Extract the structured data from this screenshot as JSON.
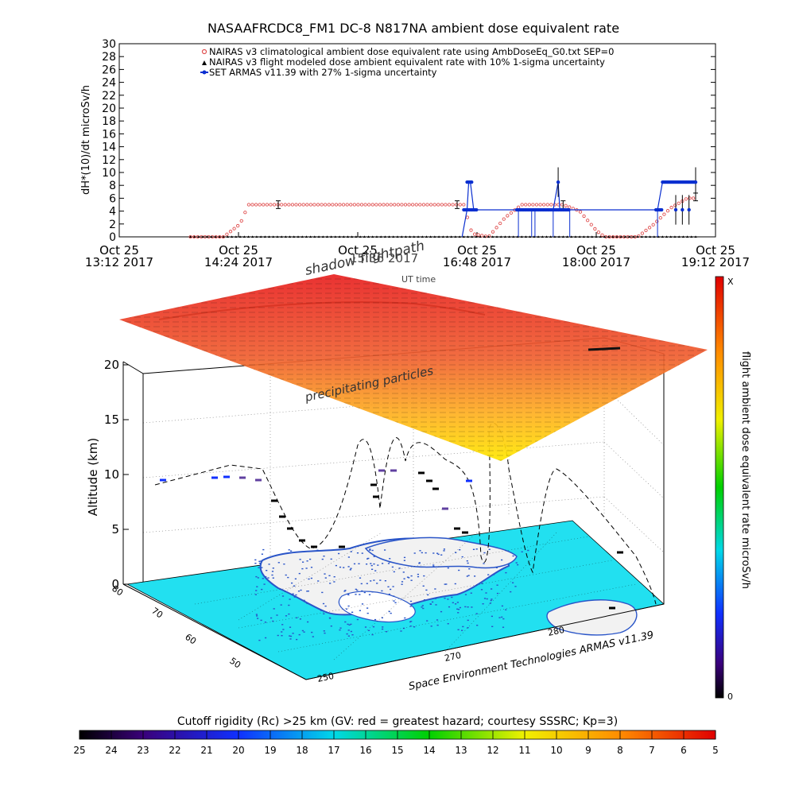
{
  "title": "NASAAFRCDC8_FM1 DC-8   N817NA ambient dose equivalent rate",
  "chart_data": [
    {
      "type": "line",
      "title": "NASAAFRCDC8_FM1 DC-8   N817NA ambient dose equivalent rate",
      "ylabel": "dH*(10)/dt microSv/h",
      "xlabel": "UT time",
      "ylim": [
        0,
        30
      ],
      "yticks": [
        "0",
        "2",
        "4",
        "6",
        "8",
        "10",
        "12",
        "14",
        "16",
        "18",
        "20",
        "22",
        "24",
        "26",
        "28",
        "30"
      ],
      "xlim": [
        "13:12",
        "19:12"
      ],
      "xtick_labels": [
        {
          "top": "Oct 25",
          "bottom": "13:12 2017"
        },
        {
          "top": "Oct 25",
          "bottom": "14:24 2017"
        },
        {
          "top": "Oct 25",
          "bottom": "15:36 2017"
        },
        {
          "top": "Oct 25",
          "bottom": "16:48 2017"
        },
        {
          "top": "Oct 25",
          "bottom": "18:00 2017"
        },
        {
          "top": "Oct 25",
          "bottom": "19:12 2017"
        }
      ],
      "legend_position": "top",
      "series": [
        {
          "name": "NAIRAS v3 climatological ambient dose equivalent rate using AmbDoseEq_G0.txt SEP=0",
          "color": "#e05050",
          "x": [
            "13:55",
            "14:15",
            "14:25",
            "14:30",
            "15:00",
            "15:30",
            "16:00",
            "16:30",
            "16:40",
            "16:45",
            "16:55",
            "17:05",
            "17:15",
            "17:25",
            "17:30",
            "17:40",
            "17:50",
            "18:00",
            "18:05",
            "18:15",
            "18:25",
            "18:35",
            "18:45",
            "18:55",
            "19:00"
          ],
          "y": [
            0,
            0,
            2,
            5,
            5,
            5,
            5,
            5,
            5,
            0.5,
            0,
            3,
            5,
            5,
            5,
            5,
            4,
            1,
            0,
            0,
            0,
            2,
            4.5,
            6,
            6
          ]
        },
        {
          "name": "NAIRAS v3 flight modeled dose ambient equivalent rate with 10% 1-sigma uncertainty",
          "color": "#000000",
          "x": [
            "13:55",
            "19:00"
          ],
          "y": [
            0,
            0
          ]
        },
        {
          "name": "SET ARMAS v11.39 with 27% 1-sigma uncertainty",
          "color": "#0a2fd0",
          "x": [
            "16:39",
            "16:42",
            "16:43",
            "16:44",
            "16:46",
            "16:48",
            "17:13",
            "17:21",
            "17:23",
            "17:34",
            "17:37",
            "17:38",
            "17:42",
            "17:44",
            "18:37",
            "18:40",
            "18:42",
            "18:46",
            "18:50",
            "18:53",
            "18:56",
            "19:00"
          ],
          "y": [
            0,
            4.2,
            8.5,
            8.5,
            4.2,
            4.2,
            4.2,
            4.2,
            4.2,
            4.2,
            8.5,
            4.2,
            4.2,
            4.2,
            4.2,
            8.5,
            8.5,
            8.5,
            8.5,
            8.5,
            8.5,
            8.5
          ]
        }
      ]
    },
    {
      "type": "scatter",
      "title": "",
      "annotations": [
        "shadow flightpath",
        "precipitating particles"
      ],
      "zlabel": "Altitude (km)",
      "zlim": [
        0,
        20
      ],
      "zticks": [
        "0",
        "5",
        "10",
        "15",
        "20"
      ],
      "latitude_ticks": [
        "80",
        "70",
        "60",
        "50"
      ],
      "longitude_ticks": [
        "250",
        "270",
        "280"
      ],
      "credit": "Space Environment Technologies ARMAS v11.39",
      "colorbar_label": "flight ambient dose equivalent rate microSv/h",
      "colorbar_ends": [
        "X",
        "0"
      ]
    }
  ],
  "rigidity_bar": {
    "label": "Cutoff rigidity (Rc) >25 km (GV: red = greatest hazard; courtesy SSSRC; Kp=3)",
    "ticks": [
      "25",
      "24",
      "23",
      "22",
      "21",
      "20",
      "19",
      "18",
      "17",
      "16",
      "15",
      "14",
      "13",
      "12",
      "11",
      "10",
      "9",
      "8",
      "7",
      "6",
      "5"
    ]
  },
  "colors": {
    "nairas_red": "#e05050",
    "armas_blue": "#0a2fd0",
    "map_ocean": "#22e0f0",
    "map_land": "#f2f2f2",
    "map_dots": "#2a55c8"
  }
}
